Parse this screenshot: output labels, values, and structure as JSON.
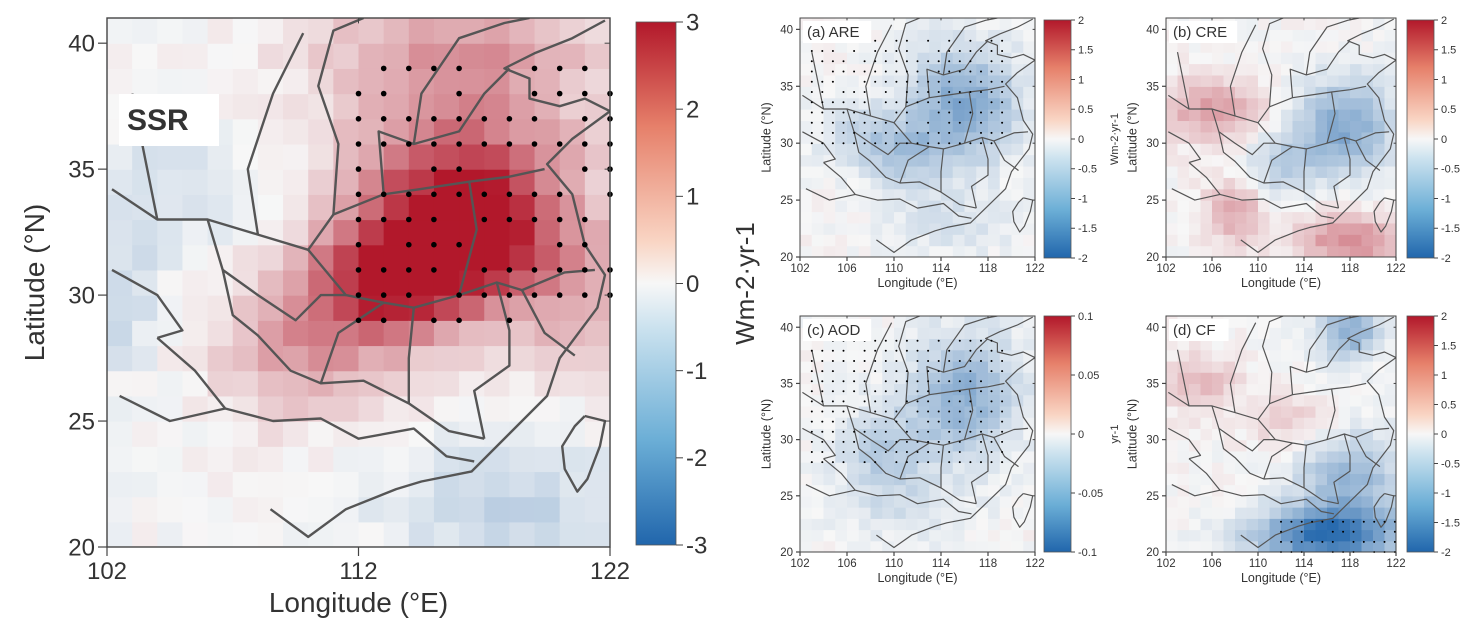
{
  "figure": {
    "panels": [
      {
        "id": "ssr",
        "label": "SSR",
        "xlabel": "Longitude (°E)",
        "ylabel": "Latitude (°N)",
        "xticks": [
          "102",
          "112",
          "122"
        ],
        "yticks": [
          "20",
          "25",
          "30",
          "35",
          "40"
        ],
        "cbar_label": "Wm-2·yr-1",
        "cbar_ticks": [
          "3",
          "2",
          "1",
          "0",
          "-1",
          "-2",
          "-3"
        ]
      },
      {
        "id": "are",
        "label": "(a) ARE",
        "xlabel": "Longitude (°E)",
        "ylabel": "Latitude (°N)",
        "xticks": [
          "102",
          "106",
          "110",
          "114",
          "118",
          "122"
        ],
        "yticks": [
          "20",
          "25",
          "30",
          "35",
          "40"
        ],
        "cbar_label": "Wm-2·yr-1",
        "cbar_ticks": [
          "2",
          "1.5",
          "1",
          "0.5",
          "0",
          "-0.5",
          "-1",
          "-1.5",
          "-2"
        ]
      },
      {
        "id": "cre",
        "label": "(b) CRE",
        "xlabel": "Longitude (°E)",
        "ylabel": "Latitude (°N)",
        "xticks": [
          "102",
          "106",
          "110",
          "114",
          "118",
          "122"
        ],
        "yticks": [
          "20",
          "25",
          "30",
          "35",
          "40"
        ],
        "cbar_label": "Wm-2·yr-1",
        "cbar_ticks": [
          "2",
          "1.5",
          "1",
          "0.5",
          "0",
          "-0.5",
          "-1",
          "-1.5",
          "-2"
        ]
      },
      {
        "id": "aod",
        "label": "(c) AOD",
        "xlabel": "Longitude (°E)",
        "ylabel": "Latitude (°N)",
        "xticks": [
          "102",
          "106",
          "110",
          "114",
          "118",
          "122"
        ],
        "yticks": [
          "20",
          "25",
          "30",
          "35",
          "40"
        ],
        "cbar_label": "yr-1",
        "cbar_ticks": [
          "0.1",
          "0.05",
          "0",
          "-0.05",
          "-0.1"
        ]
      },
      {
        "id": "cf",
        "label": "(d) CF",
        "xlabel": "Longitude (°E)",
        "ylabel": "Latitude (°N)",
        "xticks": [
          "102",
          "106",
          "110",
          "114",
          "118",
          "122"
        ],
        "yticks": [
          "20",
          "25",
          "30",
          "35",
          "40"
        ],
        "cbar_label": "%·yr-1",
        "cbar_ticks": [
          "2",
          "1.5",
          "1",
          "0.5",
          "0",
          "-0.5",
          "-1",
          "-1.5",
          "-2"
        ]
      }
    ]
  },
  "chart_data": [
    {
      "type": "heatmap",
      "variable": "SSR",
      "xlabel": "Longitude (°E)",
      "ylabel": "Latitude (°N)",
      "xlim": [
        102,
        122
      ],
      "ylim": [
        20,
        41
      ],
      "clim": [
        -3,
        3
      ],
      "colorbar_label": "Wm-2·yr-1",
      "colormap": {
        "low": "#2166ac",
        "mid": "#f7f7f7",
        "high": "#b2182b"
      },
      "features": [
        {
          "lon": [
            115,
            118.5
          ],
          "lat": [
            31,
            34
          ],
          "value": 2.3
        },
        {
          "lon": [
            112,
            118
          ],
          "lat": [
            29.5,
            35
          ],
          "value": 1.8
        },
        {
          "lon": [
            111,
            115
          ],
          "lat": [
            29,
            32
          ],
          "value": 2.2
        },
        {
          "lon": [
            112,
            121
          ],
          "lat": [
            33,
            39
          ],
          "value": 1.3
        },
        {
          "lon": [
            107,
            112
          ],
          "lat": [
            26,
            30
          ],
          "value": 1.2
        },
        {
          "lon": [
            119,
            122
          ],
          "lat": [
            28,
            33
          ],
          "value": 1.0
        },
        {
          "lon": [
            110,
            122
          ],
          "lat": [
            39,
            41
          ],
          "value": 0.9
        },
        {
          "lon": [
            102,
            107
          ],
          "lat": [
            32,
            36
          ],
          "value": -0.5
        },
        {
          "lon": [
            114,
            122
          ],
          "lat": [
            20,
            23
          ],
          "value": -0.8
        },
        {
          "lon": [
            102,
            103
          ],
          "lat": [
            28,
            31
          ],
          "value": -0.7
        }
      ],
      "significant_region": {
        "lon": [
          112,
          122
        ],
        "lat": [
          29,
          39
        ]
      }
    },
    {
      "type": "heatmap",
      "variable": "ARE",
      "xlabel": "Longitude (°E)",
      "ylabel": "Latitude (°N)",
      "xlim": [
        102,
        122
      ],
      "ylim": [
        20,
        41
      ],
      "clim": [
        -2,
        2
      ],
      "colorbar_label": "Wm-2·yr-1",
      "features": [
        {
          "lon": [
            112,
            120
          ],
          "lat": [
            29,
            38
          ],
          "value": -1.1
        },
        {
          "lon": [
            108,
            114
          ],
          "lat": [
            27,
            31
          ],
          "value": -0.6
        },
        {
          "lon": [
            104,
            110
          ],
          "lat": [
            29,
            33
          ],
          "value": -0.4
        },
        {
          "lon": [
            110,
            120
          ],
          "lat": [
            21,
            25
          ],
          "value": -0.3
        }
      ],
      "significant_region": {
        "lon": [
          103,
          120
        ],
        "lat": [
          30,
          39
        ]
      }
    },
    {
      "type": "heatmap",
      "variable": "CRE",
      "xlabel": "Longitude (°E)",
      "ylabel": "Latitude (°N)",
      "xlim": [
        102,
        122
      ],
      "ylim": [
        20,
        41
      ],
      "clim": [
        -2,
        2
      ],
      "colorbar_label": "Wm-2·yr-1",
      "features": [
        {
          "lon": [
            102,
            110
          ],
          "lat": [
            31,
            35
          ],
          "value": 0.8
        },
        {
          "lon": [
            106,
            110
          ],
          "lat": [
            22,
            26
          ],
          "value": 0.7
        },
        {
          "lon": [
            114,
            122
          ],
          "lat": [
            20,
            23
          ],
          "value": 1.0
        },
        {
          "lon": [
            114,
            121
          ],
          "lat": [
            28,
            35
          ],
          "value": -1.1
        },
        {
          "lon": [
            110,
            114
          ],
          "lat": [
            26,
            30
          ],
          "value": -0.6
        }
      ],
      "significant_region": null
    },
    {
      "type": "heatmap",
      "variable": "AOD",
      "xlabel": "Longitude (°E)",
      "ylabel": "Latitude (°N)",
      "xlim": [
        102,
        122
      ],
      "ylim": [
        20,
        41
      ],
      "clim": [
        -0.1,
        0.1
      ],
      "colorbar_label": "yr-1",
      "features": [
        {
          "lon": [
            112,
            120
          ],
          "lat": [
            29,
            39
          ],
          "value": -0.05
        },
        {
          "lon": [
            106,
            112
          ],
          "lat": [
            26,
            32
          ],
          "value": -0.03
        },
        {
          "lon": [
            106,
            116
          ],
          "lat": [
            22,
            26
          ],
          "value": -0.015
        }
      ],
      "significant_region": {
        "lon": [
          103,
          120
        ],
        "lat": [
          28,
          39
        ]
      }
    },
    {
      "type": "heatmap",
      "variable": "CF",
      "xlabel": "Longitude (°E)",
      "ylabel": "Latitude (°N)",
      "xlim": [
        102,
        122
      ],
      "ylim": [
        20,
        41
      ],
      "clim": [
        -2,
        2
      ],
      "colorbar_label": "%·yr-1",
      "features": [
        {
          "lon": [
            110,
            122
          ],
          "lat": [
            20,
            23
          ],
          "value": -1.8
        },
        {
          "lon": [
            114,
            122
          ],
          "lat": [
            23,
            30
          ],
          "value": -0.9
        },
        {
          "lon": [
            116,
            120
          ],
          "lat": [
            38,
            41
          ],
          "value": -1.0
        },
        {
          "lon": [
            102,
            108
          ],
          "lat": [
            33,
            37
          ],
          "value": 0.5
        },
        {
          "lon": [
            110,
            116
          ],
          "lat": [
            30,
            33
          ],
          "value": 0.4
        }
      ],
      "significant_region": {
        "lon": [
          112,
          122
        ],
        "lat": [
          20,
          23
        ]
      }
    }
  ]
}
